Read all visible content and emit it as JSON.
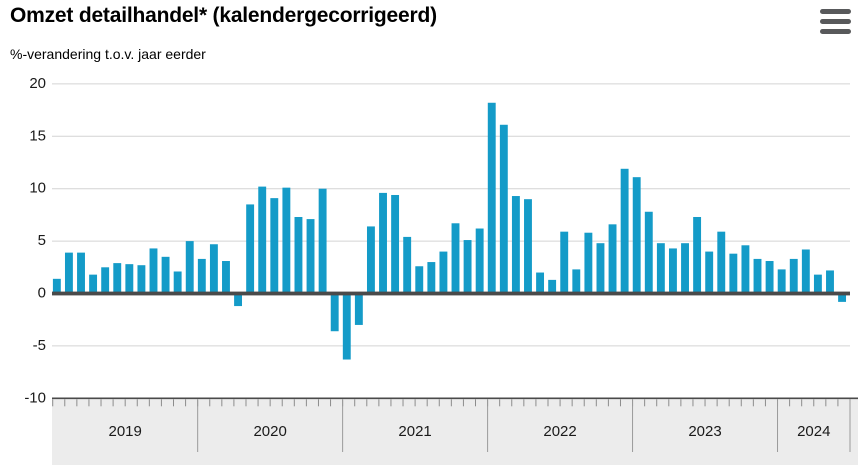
{
  "header": {
    "title": "Omzet detailhandel* (kalendergecorrigeerd)",
    "subtitle": "%-verandering t.o.v. jaar eerder"
  },
  "icons": {
    "menu": "hamburger-menu-icon"
  },
  "colors": {
    "bar": "#149bc8",
    "zero_line": "#4a4a4a",
    "gridline": "#d4d4d4",
    "axis_band": "#ececec",
    "band_border": "#4a4a4a",
    "month_tick": "#8c8c8c",
    "year_divider": "#9a9a9a",
    "text": "#1a1a1a",
    "menu_icon": "#58595b"
  },
  "chart_data": {
    "type": "bar",
    "title": "Omzet detailhandel* (kalendergecorrigeerd)",
    "subtitle": "%-verandering t.o.v. jaar eerder",
    "unit": "%",
    "ylim": [
      -10,
      20
    ],
    "yticks": [
      20,
      15,
      10,
      5,
      0,
      -5,
      -10
    ],
    "grid": true,
    "legend": false,
    "bar_color": "#149bc8",
    "x_axis": {
      "years": [
        "2019",
        "2020",
        "2021",
        "2022",
        "2023",
        "2024"
      ],
      "months_per_year": [
        12,
        12,
        12,
        12,
        12,
        6
      ]
    },
    "series": [
      {
        "name": "Omzet detailhandel, %-verandering t.o.v. jaar eerder",
        "by_year": {
          "2019": [
            1.4,
            3.9,
            3.9,
            1.8,
            2.5,
            2.9,
            2.8,
            2.7,
            4.3,
            3.5,
            2.1,
            5.0
          ],
          "2020": [
            3.3,
            4.7,
            3.1,
            -1.2,
            8.5,
            10.2,
            9.1,
            10.1,
            7.3,
            7.1,
            10.0,
            -3.6
          ],
          "2021": [
            -6.3,
            -3.0,
            6.4,
            9.6,
            9.4,
            5.4,
            2.6,
            3.0,
            4.0,
            6.7,
            5.1,
            6.2
          ],
          "2022": [
            18.2,
            16.1,
            9.3,
            9.0,
            2.0,
            1.3,
            5.9,
            2.3,
            5.8,
            4.8,
            6.6,
            11.9
          ],
          "2023": [
            11.1,
            7.8,
            4.8,
            4.3,
            4.8,
            7.3,
            4.0,
            5.9,
            3.8,
            4.6,
            3.3,
            3.1
          ],
          "2024": [
            2.3,
            3.3,
            4.2,
            1.8,
            2.2,
            -0.8
          ]
        }
      }
    ]
  }
}
